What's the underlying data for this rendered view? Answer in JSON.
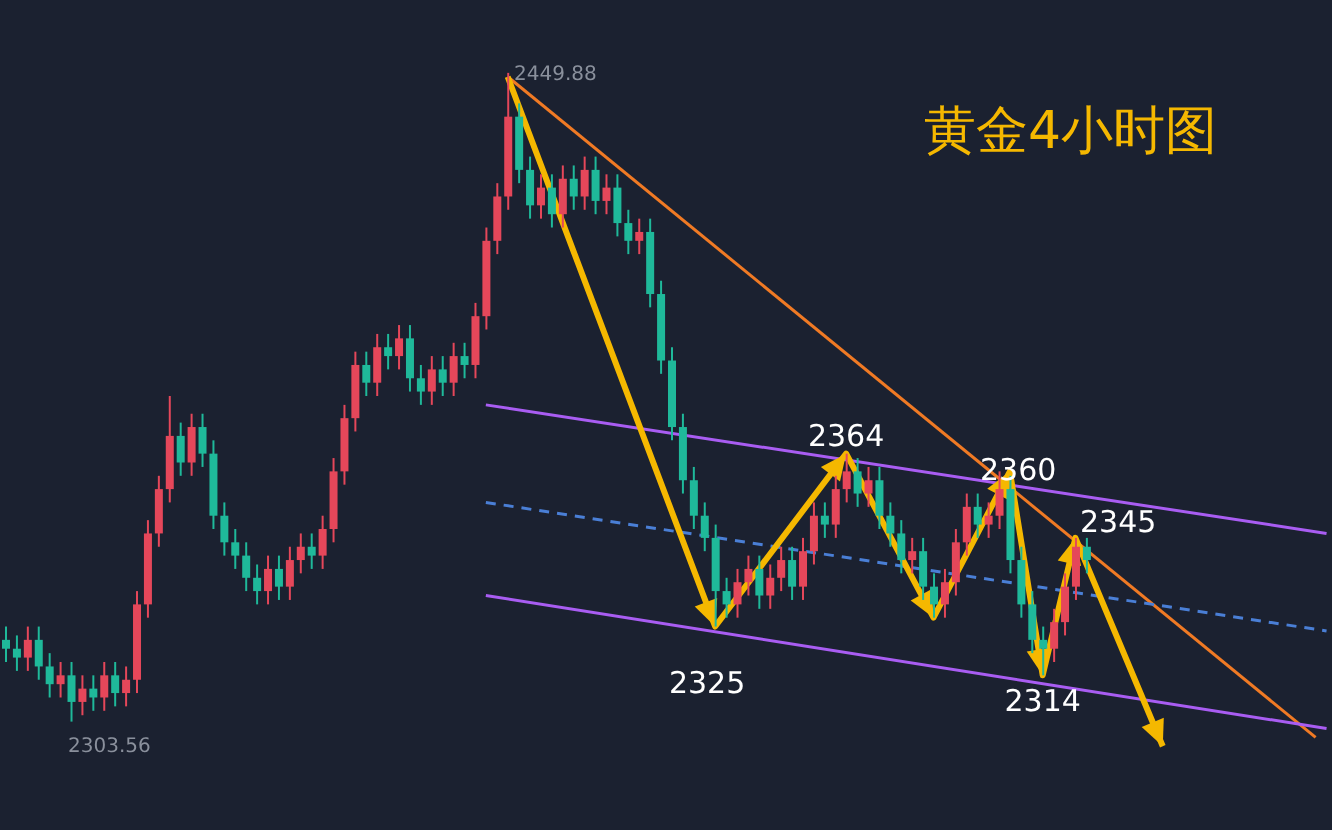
{
  "chart_data": {
    "type": "candlestick",
    "title": "黄金4小时图",
    "tick_labels": false,
    "grid": false,
    "categories": [
      null,
      null,
      null,
      null,
      null,
      null,
      null,
      null,
      null,
      null,
      null,
      null,
      null,
      null,
      null,
      null,
      null,
      null,
      null,
      null,
      null,
      null,
      null,
      null,
      null,
      null,
      null,
      null,
      null,
      null,
      null,
      null,
      null,
      null,
      null,
      null,
      null,
      null,
      null,
      null,
      null,
      null,
      null,
      null,
      null,
      null,
      null,
      null,
      null,
      null,
      null,
      null,
      null,
      null,
      null,
      null,
      null,
      null,
      null,
      null,
      null,
      null,
      null,
      null,
      null,
      null,
      null,
      null,
      null,
      null,
      null,
      null,
      null,
      null,
      null,
      null,
      null,
      null,
      null,
      null,
      null,
      null,
      null,
      null,
      null,
      null,
      null,
      null,
      null,
      null,
      null,
      null,
      null,
      null,
      null,
      null,
      null,
      null,
      null,
      null,
      null,
      null,
      null,
      null,
      null,
      null,
      null,
      null,
      null,
      null,
      null,
      null,
      null,
      null,
      null,
      null,
      null,
      null,
      null,
      null,
      null,
      null
    ],
    "ohlc": [
      [
        2322,
        2325,
        2317,
        2320
      ],
      [
        2320,
        2323,
        2315,
        2318
      ],
      [
        2318,
        2325,
        2315,
        2322
      ],
      [
        2322,
        2325,
        2313,
        2316
      ],
      [
        2316,
        2319,
        2309,
        2312
      ],
      [
        2312,
        2317,
        2309,
        2314
      ],
      [
        2314,
        2317,
        2303.56,
        2308
      ],
      [
        2308,
        2314,
        2305,
        2311
      ],
      [
        2311,
        2314,
        2306,
        2309
      ],
      [
        2309,
        2317,
        2306,
        2314
      ],
      [
        2314,
        2317,
        2307,
        2310
      ],
      [
        2310,
        2316,
        2307,
        2313
      ],
      [
        2313,
        2333,
        2310,
        2330
      ],
      [
        2330,
        2349,
        2327,
        2346
      ],
      [
        2346,
        2359,
        2343,
        2356
      ],
      [
        2356,
        2377,
        2353,
        2368
      ],
      [
        2368,
        2371,
        2359,
        2362
      ],
      [
        2362,
        2373,
        2359,
        2370
      ],
      [
        2370,
        2373,
        2361,
        2364
      ],
      [
        2364,
        2367,
        2347,
        2350
      ],
      [
        2350,
        2353,
        2341,
        2344
      ],
      [
        2344,
        2347,
        2338,
        2341
      ],
      [
        2341,
        2344,
        2333,
        2336
      ],
      [
        2336,
        2339,
        2330,
        2333
      ],
      [
        2333,
        2341,
        2330,
        2338
      ],
      [
        2338,
        2341,
        2331,
        2334
      ],
      [
        2334,
        2343,
        2331,
        2340
      ],
      [
        2340,
        2346,
        2337,
        2343
      ],
      [
        2343,
        2346,
        2338,
        2341
      ],
      [
        2341,
        2350,
        2338,
        2347
      ],
      [
        2347,
        2363,
        2344,
        2360
      ],
      [
        2360,
        2375,
        2357,
        2372
      ],
      [
        2372,
        2387,
        2369,
        2384
      ],
      [
        2384,
        2387,
        2377,
        2380
      ],
      [
        2380,
        2391,
        2377,
        2388
      ],
      [
        2388,
        2391,
        2383,
        2386
      ],
      [
        2386,
        2393,
        2383,
        2390
      ],
      [
        2390,
        2393,
        2378,
        2381
      ],
      [
        2381,
        2384,
        2375,
        2378
      ],
      [
        2378,
        2386,
        2375,
        2383
      ],
      [
        2383,
        2386,
        2377,
        2380
      ],
      [
        2380,
        2389,
        2377,
        2386
      ],
      [
        2386,
        2389,
        2381,
        2384
      ],
      [
        2384,
        2398,
        2381,
        2395
      ],
      [
        2395,
        2415,
        2392,
        2412
      ],
      [
        2412,
        2425,
        2409,
        2422
      ],
      [
        2422,
        2449.88,
        2419,
        2440
      ],
      [
        2440,
        2443,
        2425,
        2428
      ],
      [
        2428,
        2431,
        2417,
        2420
      ],
      [
        2420,
        2427,
        2417,
        2424
      ],
      [
        2424,
        2427,
        2415,
        2418
      ],
      [
        2418,
        2429,
        2415,
        2426
      ],
      [
        2426,
        2429,
        2419,
        2422
      ],
      [
        2422,
        2431,
        2419,
        2428
      ],
      [
        2428,
        2431,
        2418,
        2421
      ],
      [
        2421,
        2427,
        2418,
        2424
      ],
      [
        2424,
        2427,
        2413,
        2416
      ],
      [
        2416,
        2419,
        2409,
        2412
      ],
      [
        2412,
        2417,
        2409,
        2414
      ],
      [
        2414,
        2417,
        2397,
        2400
      ],
      [
        2400,
        2403,
        2382,
        2385
      ],
      [
        2385,
        2388,
        2367,
        2370
      ],
      [
        2370,
        2373,
        2355,
        2358
      ],
      [
        2358,
        2361,
        2347,
        2350
      ],
      [
        2350,
        2353,
        2342,
        2345
      ],
      [
        2345,
        2348,
        2325,
        2333
      ],
      [
        2333,
        2336,
        2327,
        2330
      ],
      [
        2330,
        2338,
        2327,
        2335
      ],
      [
        2335,
        2341,
        2332,
        2338
      ],
      [
        2338,
        2341,
        2329,
        2332
      ],
      [
        2332,
        2339,
        2329,
        2336
      ],
      [
        2336,
        2343,
        2333,
        2340
      ],
      [
        2340,
        2343,
        2331,
        2334
      ],
      [
        2334,
        2345,
        2331,
        2342
      ],
      [
        2342,
        2353,
        2339,
        2350
      ],
      [
        2350,
        2353,
        2345,
        2348
      ],
      [
        2348,
        2359,
        2345,
        2356
      ],
      [
        2356,
        2364,
        2353,
        2360
      ],
      [
        2360,
        2363,
        2352,
        2355
      ],
      [
        2355,
        2361,
        2352,
        2358
      ],
      [
        2358,
        2361,
        2347,
        2350
      ],
      [
        2350,
        2353,
        2343,
        2346
      ],
      [
        2346,
        2349,
        2337,
        2340
      ],
      [
        2340,
        2345,
        2337,
        2342
      ],
      [
        2342,
        2345,
        2331,
        2334
      ],
      [
        2334,
        2337,
        2327,
        2330
      ],
      [
        2330,
        2338,
        2327,
        2335
      ],
      [
        2335,
        2347,
        2332,
        2344
      ],
      [
        2344,
        2355,
        2341,
        2352
      ],
      [
        2352,
        2355,
        2345,
        2348
      ],
      [
        2348,
        2353,
        2345,
        2350
      ],
      [
        2350,
        2360,
        2347,
        2356
      ],
      [
        2356,
        2359,
        2337,
        2340
      ],
      [
        2340,
        2343,
        2327,
        2330
      ],
      [
        2330,
        2333,
        2319,
        2322
      ],
      [
        2322,
        2325,
        2314,
        2320
      ],
      [
        2320,
        2329,
        2317,
        2326
      ],
      [
        2326,
        2337,
        2323,
        2334
      ],
      [
        2334,
        2345,
        2331,
        2343
      ],
      [
        2343,
        2345,
        2337,
        2340
      ],
      null,
      null,
      null,
      null,
      null,
      null,
      null,
      null,
      null,
      null,
      null,
      null,
      null,
      null,
      null,
      null,
      null,
      null,
      null,
      null,
      null,
      null
    ],
    "series": [
      {
        "type": "line",
        "color": "#f07a24",
        "values": [
          null,
          null,
          null,
          null,
          null,
          null,
          null,
          null,
          null,
          null,
          null,
          null,
          null,
          null,
          null,
          null,
          null,
          null,
          null,
          null,
          null,
          null,
          null,
          null,
          null,
          null,
          null,
          null,
          null,
          null,
          null,
          null,
          null,
          null,
          null,
          null,
          null,
          null,
          null,
          null,
          null,
          null,
          null,
          null,
          null,
          null,
          2449,
          null,
          null,
          null,
          null,
          null,
          null,
          null,
          null,
          null,
          null,
          null,
          null,
          null,
          null,
          null,
          null,
          null,
          null,
          null,
          null,
          null,
          null,
          null,
          null,
          null,
          null,
          null,
          null,
          null,
          null,
          null,
          null,
          null,
          null,
          null,
          null,
          null,
          null,
          null,
          null,
          null,
          null,
          null,
          null,
          null,
          null,
          null,
          null,
          null,
          null,
          null,
          null,
          null,
          null,
          null,
          null,
          null,
          null,
          null,
          null,
          null,
          null,
          null,
          null,
          null,
          null,
          null,
          null,
          null,
          null,
          null,
          null,
          null,
          2300,
          null
        ]
      },
      {
        "type": "line",
        "color": "#a95df2",
        "values": [
          null,
          null,
          null,
          null,
          null,
          null,
          null,
          null,
          null,
          null,
          null,
          null,
          null,
          null,
          null,
          null,
          null,
          null,
          null,
          null,
          null,
          null,
          null,
          null,
          null,
          null,
          null,
          null,
          null,
          null,
          null,
          null,
          null,
          null,
          null,
          null,
          null,
          null,
          null,
          null,
          null,
          null,
          null,
          null,
          2375,
          null,
          null,
          null,
          null,
          null,
          null,
          null,
          null,
          null,
          null,
          null,
          null,
          null,
          null,
          null,
          null,
          null,
          null,
          null,
          null,
          null,
          null,
          null,
          null,
          null,
          null,
          null,
          null,
          null,
          null,
          null,
          null,
          null,
          null,
          null,
          null,
          null,
          null,
          null,
          null,
          null,
          null,
          null,
          null,
          null,
          null,
          null,
          null,
          null,
          null,
          null,
          null,
          null,
          null,
          null,
          null,
          null,
          null,
          null,
          null,
          null,
          null,
          null,
          null,
          null,
          null,
          null,
          null,
          null,
          null,
          null,
          null,
          null,
          null,
          null,
          null,
          2346
        ]
      },
      {
        "type": "line",
        "color": "#a95df2",
        "values": [
          null,
          null,
          null,
          null,
          null,
          null,
          null,
          null,
          null,
          null,
          null,
          null,
          null,
          null,
          null,
          null,
          null,
          null,
          null,
          null,
          null,
          null,
          null,
          null,
          null,
          null,
          null,
          null,
          null,
          null,
          null,
          null,
          null,
          null,
          null,
          null,
          null,
          null,
          null,
          null,
          null,
          null,
          null,
          null,
          2332,
          null,
          null,
          null,
          null,
          null,
          null,
          null,
          null,
          null,
          null,
          null,
          null,
          null,
          null,
          null,
          null,
          null,
          null,
          null,
          null,
          null,
          null,
          null,
          null,
          null,
          null,
          null,
          null,
          null,
          null,
          null,
          null,
          null,
          null,
          null,
          null,
          null,
          null,
          null,
          null,
          null,
          null,
          null,
          null,
          null,
          null,
          null,
          null,
          null,
          null,
          null,
          null,
          null,
          null,
          null,
          null,
          null,
          null,
          null,
          null,
          null,
          null,
          null,
          null,
          null,
          null,
          null,
          null,
          null,
          null,
          null,
          null,
          null,
          null,
          null,
          null,
          2302
        ]
      },
      {
        "type": "line",
        "color": "#4a7fd6",
        "line_style": "dashed",
        "values": [
          null,
          null,
          null,
          null,
          null,
          null,
          null,
          null,
          null,
          null,
          null,
          null,
          null,
          null,
          null,
          null,
          null,
          null,
          null,
          null,
          null,
          null,
          null,
          null,
          null,
          null,
          null,
          null,
          null,
          null,
          null,
          null,
          null,
          null,
          null,
          null,
          null,
          null,
          null,
          null,
          null,
          null,
          null,
          null,
          2353,
          null,
          null,
          null,
          null,
          null,
          null,
          null,
          null,
          null,
          null,
          null,
          null,
          null,
          null,
          null,
          null,
          null,
          null,
          null,
          null,
          null,
          null,
          null,
          null,
          null,
          null,
          null,
          null,
          null,
          null,
          null,
          null,
          null,
          null,
          null,
          null,
          null,
          null,
          null,
          null,
          null,
          null,
          null,
          null,
          null,
          null,
          null,
          null,
          null,
          null,
          null,
          null,
          null,
          null,
          null,
          null,
          null,
          null,
          null,
          null,
          null,
          null,
          null,
          null,
          null,
          null,
          null,
          null,
          null,
          null,
          null,
          null,
          null,
          null,
          null,
          null,
          2324
        ]
      },
      {
        "type": "line",
        "color": "#f5b800",
        "values": [
          null,
          null,
          null,
          null,
          null,
          null,
          null,
          null,
          null,
          null,
          null,
          null,
          null,
          null,
          null,
          null,
          null,
          null,
          null,
          null,
          null,
          null,
          null,
          null,
          null,
          null,
          null,
          null,
          null,
          null,
          null,
          null,
          null,
          null,
          null,
          null,
          null,
          null,
          null,
          null,
          null,
          null,
          null,
          null,
          null,
          null,
          2449,
          null,
          null,
          null,
          null,
          null,
          null,
          null,
          null,
          null,
          null,
          null,
          null,
          null,
          null,
          null,
          null,
          null,
          null,
          2325,
          null,
          null,
          null,
          null,
          null,
          null,
          null,
          null,
          null,
          null,
          null,
          2364,
          null,
          null,
          null,
          null,
          null,
          null,
          null,
          2327,
          null,
          null,
          null,
          null,
          null,
          null,
          2360,
          null,
          null,
          2314,
          null,
          null,
          2345,
          null,
          null,
          null,
          null,
          null,
          null,
          null,
          2298,
          null,
          null,
          null,
          null,
          null,
          null,
          null,
          null,
          null,
          null,
          null,
          null,
          null,
          null,
          null
        ]
      }
    ],
    "annotations": [
      "2449.88",
      "2303.56",
      {
        "text": "2364",
        "y": 2364
      },
      "2360",
      "2345",
      {
        "text": "2325",
        "y": 2325
      },
      {
        "text": "2314",
        "y": 2314
      }
    ]
  }
}
